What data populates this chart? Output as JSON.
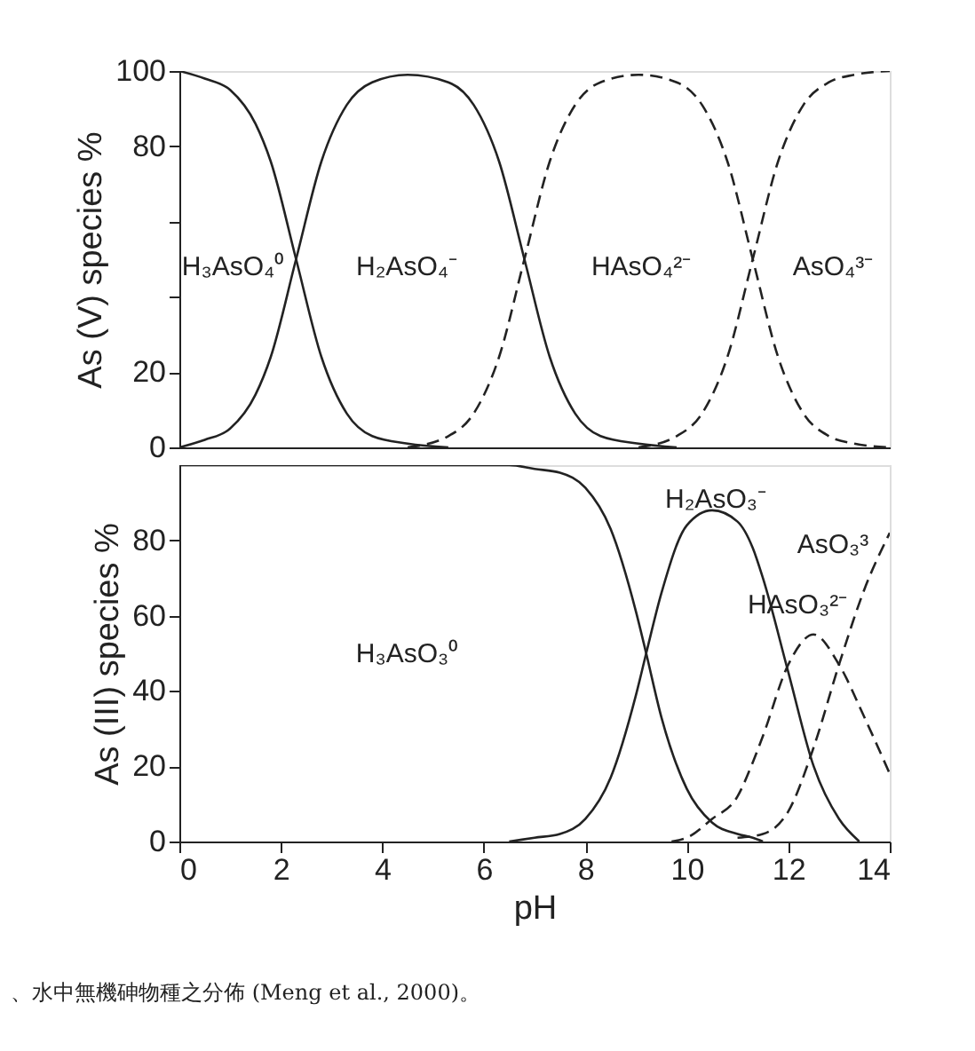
{
  "chart_data": [
    {
      "type": "line",
      "ylabel": "As (V) species %",
      "xlim": [
        0,
        14
      ],
      "ylim": [
        0,
        100
      ],
      "yticks": [
        0,
        20,
        {
          "value": 40,
          "label": null
        },
        {
          "value": 60,
          "label": null
        },
        80,
        100
      ],
      "tick_labels": "y",
      "grid": false,
      "series": [
        {
          "color": "#222222",
          "line_style": "solid",
          "x": [
            0,
            0.5,
            1,
            1.5,
            1.8,
            2.3,
            2.8,
            3.3,
            3.8,
            4.5,
            5.3
          ],
          "values": [
            100,
            98,
            95,
            86,
            76,
            50,
            24,
            9,
            3,
            1,
            0
          ]
        },
        {
          "color": "#222222",
          "line_style": "solid",
          "x": [
            0,
            0.5,
            1,
            1.5,
            1.8,
            2.3,
            2.8,
            3.3,
            3.8,
            4.5,
            5.3,
            5.8,
            6.3,
            6.8,
            7.3,
            7.8,
            8.3,
            9.05,
            9.8
          ],
          "values": [
            0,
            2,
            5,
            14,
            24,
            50,
            76,
            91,
            97,
            99,
            97,
            91,
            76,
            50,
            24,
            9,
            3,
            1,
            0
          ]
        },
        {
          "color": "#222222",
          "line_style": "dashed",
          "x": [
            4.5,
            5.3,
            5.8,
            6.3,
            6.8,
            7.3,
            7.8,
            8.3,
            9.05,
            9.8,
            10.3,
            10.8,
            11.3,
            11.8,
            12.3,
            12.8,
            13.3,
            14
          ],
          "values": [
            0,
            3,
            9,
            24,
            50,
            76,
            91,
            97,
            99,
            97,
            91,
            76,
            50,
            24,
            9,
            3,
            1,
            0
          ]
        },
        {
          "color": "#222222",
          "line_style": "dashed",
          "x": [
            9.05,
            9.8,
            10.3,
            10.8,
            11.3,
            11.8,
            12.3,
            12.8,
            13.3,
            14
          ],
          "values": [
            0,
            3,
            9,
            24,
            50,
            76,
            91,
            97,
            99,
            100
          ]
        }
      ],
      "annotations": [
        "H₃AsO₄⁰",
        "H₂AsO₄⁻",
        "HAsO₄²⁻",
        "AsO₄³⁻"
      ]
    },
    {
      "type": "line",
      "ylabel": "As (III) species %",
      "xlabel": "pH",
      "xlim": [
        0,
        14
      ],
      "ylim": [
        0,
        100
      ],
      "xticks": [
        0,
        2,
        4,
        6,
        8,
        10,
        12,
        14
      ],
      "yticks": [
        0,
        20,
        40,
        60,
        80
      ],
      "grid": false,
      "series": [
        {
          "color": "#222222",
          "line_style": "solid",
          "x": [
            0,
            6.5,
            7,
            7.5,
            8,
            8.5,
            9,
            9.2,
            9.5,
            10,
            10.5,
            11,
            11.3,
            11.5
          ],
          "values": [
            100,
            100,
            99,
            98,
            94,
            83,
            61,
            50,
            33,
            14,
            5,
            2,
            1,
            0
          ]
        },
        {
          "color": "#222222",
          "line_style": "solid",
          "x": [
            6.5,
            7,
            7.5,
            8,
            8.5,
            9,
            9.2,
            9.5,
            10,
            10.5,
            11,
            11.3,
            11.5,
            12,
            12.5,
            13,
            13.4
          ],
          "values": [
            0,
            1,
            2,
            6,
            17,
            39,
            50,
            66,
            84,
            88,
            85,
            78,
            70,
            45,
            20,
            6,
            0
          ]
        },
        {
          "color": "#222222",
          "line_style": "dashed",
          "x": [
            9.7,
            10,
            10.5,
            11,
            11.3,
            11.5,
            12,
            12.5,
            13,
            13.5,
            14
          ],
          "values": [
            0,
            1,
            6,
            12,
            21,
            28,
            47,
            55,
            47,
            33,
            18
          ]
        },
        {
          "color": "#222222",
          "line_style": "dashed",
          "x": [
            11,
            11.5,
            12,
            12.5,
            13,
            13.5,
            14
          ],
          "values": [
            1,
            2,
            8,
            25,
            47,
            67,
            82
          ]
        }
      ],
      "annotations": [
        "H₃AsO₃⁰",
        "H₂AsO₃⁻",
        "AsO₃³",
        "HAsO₃²⁻",
        "、水中無機砷物種之分佈 (Meng et al., 2000)。"
      ]
    }
  ]
}
